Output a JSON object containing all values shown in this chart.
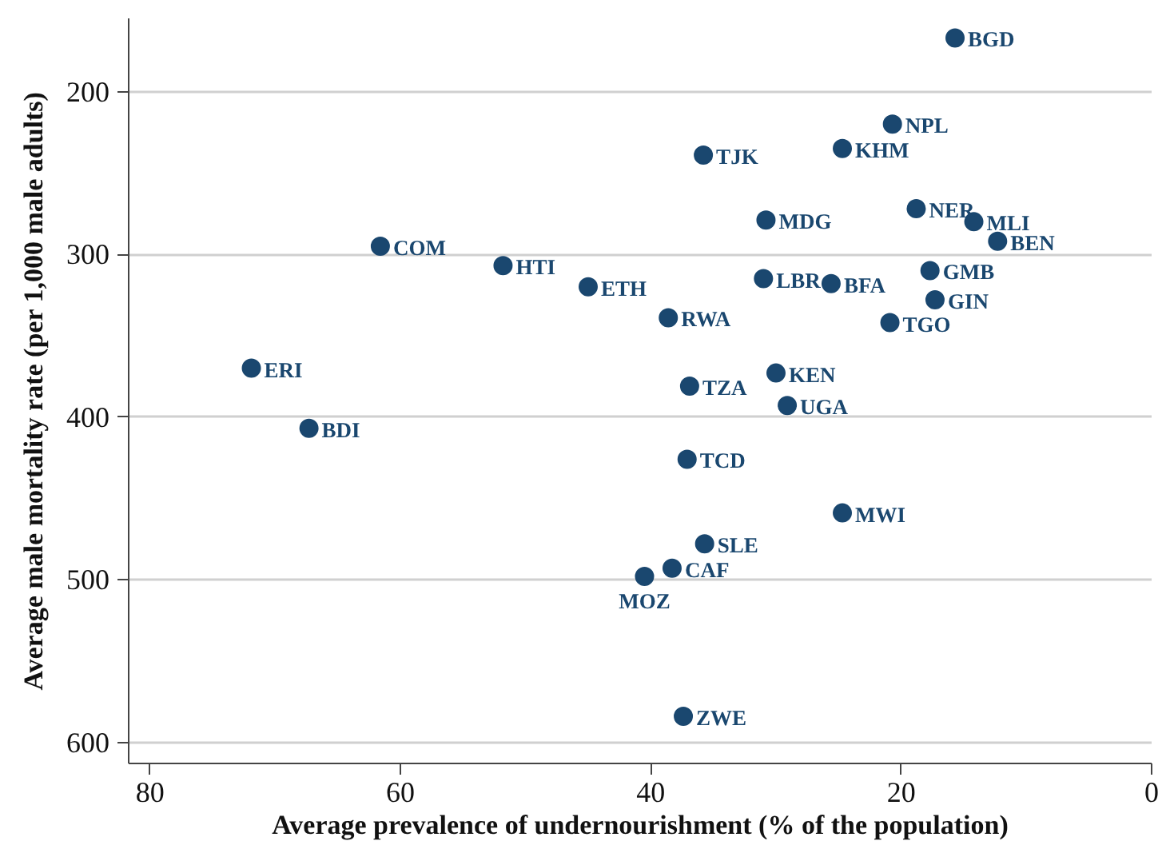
{
  "chart_data": {
    "type": "scatter",
    "xlabel": "Average prevalence of undernourishment (% of the population)",
    "ylabel": "Average male mortality rate (per 1,000 male adults)",
    "x": [
      15.7,
      20.7,
      24.7,
      35.8,
      18.8,
      30.8,
      14.2,
      12.3,
      61.6,
      51.8,
      17.7,
      31.0,
      25.6,
      45.0,
      17.3,
      38.6,
      20.9,
      71.9,
      30.0,
      36.9,
      29.1,
      67.3,
      37.1,
      24.7,
      35.7,
      38.3,
      40.5,
      37.4
    ],
    "values": [
      167,
      220,
      235,
      239,
      272,
      279,
      280,
      292,
      295,
      307,
      310,
      315,
      318,
      320,
      328,
      339,
      342,
      370,
      373,
      381,
      393,
      407,
      426,
      459,
      478,
      493,
      498,
      584
    ],
    "color": "#1a476f",
    "marker": "circle",
    "xlim": [
      81.7,
      0
    ],
    "xticks": [
      80,
      60,
      40,
      20,
      0
    ],
    "ylim": [
      613,
      155
    ],
    "yticks": [
      200,
      300,
      400,
      500,
      600
    ],
    "grid": "y",
    "annotations": [
      {
        "text": "BGD",
        "x": 15.7,
        "y": 167
      },
      {
        "text": "NPL",
        "x": 20.7,
        "y": 220
      },
      {
        "text": "KHM",
        "x": 24.7,
        "y": 235
      },
      {
        "text": "TJK",
        "x": 35.8,
        "y": 239
      },
      {
        "text": "NER",
        "x": 18.8,
        "y": 272
      },
      {
        "text": "MDG",
        "x": 30.8,
        "y": 279
      },
      {
        "text": "MLI",
        "x": 14.2,
        "y": 280
      },
      {
        "text": "BEN",
        "x": 12.3,
        "y": 292
      },
      {
        "text": "COM",
        "x": 61.6,
        "y": 295
      },
      {
        "text": "HTI",
        "x": 51.8,
        "y": 307
      },
      {
        "text": "GMB",
        "x": 17.7,
        "y": 310
      },
      {
        "text": "LBR",
        "x": 31.0,
        "y": 315
      },
      {
        "text": "BFA",
        "x": 25.6,
        "y": 318
      },
      {
        "text": "ETH",
        "x": 45.0,
        "y": 320
      },
      {
        "text": "GIN",
        "x": 17.3,
        "y": 328
      },
      {
        "text": "RWA",
        "x": 38.6,
        "y": 339
      },
      {
        "text": "TGO",
        "x": 20.9,
        "y": 342
      },
      {
        "text": "ERI",
        "x": 71.9,
        "y": 370
      },
      {
        "text": "KEN",
        "x": 30.0,
        "y": 373
      },
      {
        "text": "TZA",
        "x": 36.9,
        "y": 381
      },
      {
        "text": "UGA",
        "x": 29.1,
        "y": 393
      },
      {
        "text": "BDI",
        "x": 67.3,
        "y": 407
      },
      {
        "text": "TCD",
        "x": 37.1,
        "y": 426
      },
      {
        "text": "MWI",
        "x": 24.7,
        "y": 459
      },
      {
        "text": "SLE",
        "x": 35.7,
        "y": 478
      },
      {
        "text": "CAF",
        "x": 38.3,
        "y": 493
      },
      {
        "text": "MOZ",
        "x": 40.5,
        "y": 498
      },
      {
        "text": "ZWE",
        "x": 37.4,
        "y": 584
      }
    ]
  }
}
